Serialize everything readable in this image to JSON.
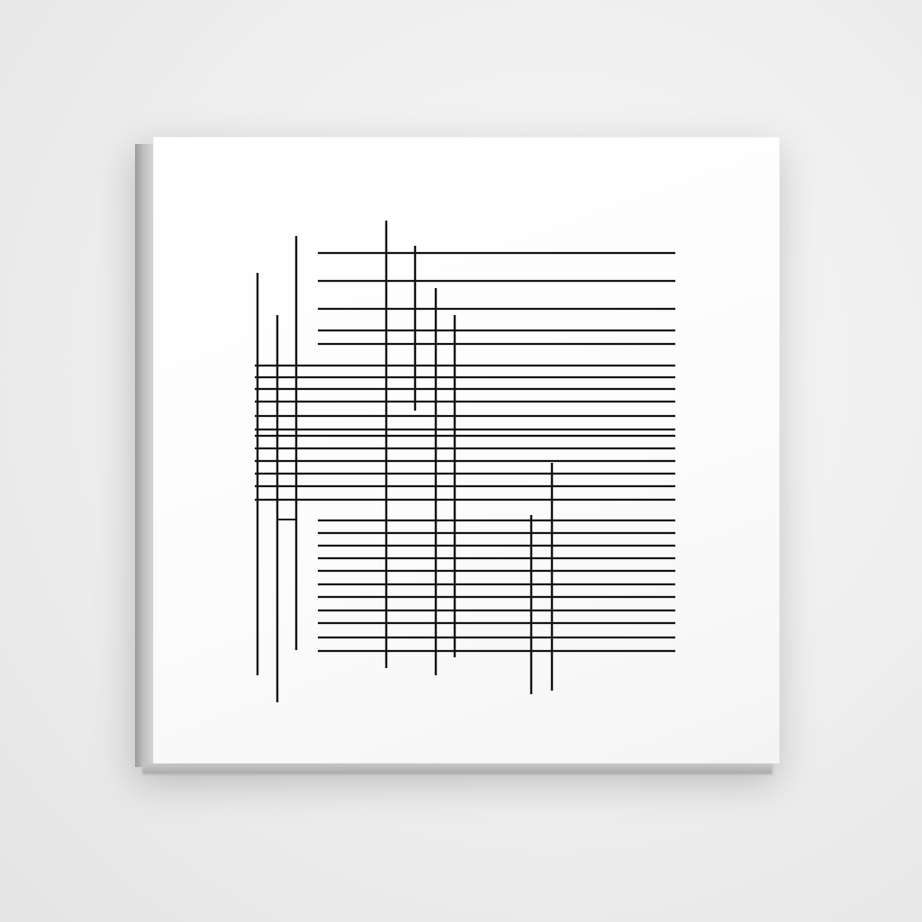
{
  "artwork": {
    "title": "",
    "stroke_color": "#141414",
    "background_color": "#ffffff",
    "wall_color": "#eeeeee"
  }
}
